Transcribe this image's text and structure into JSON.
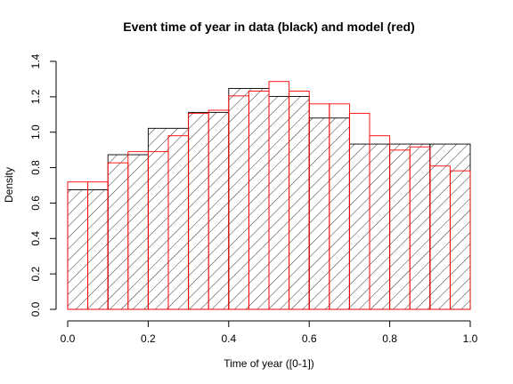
{
  "chart_data": {
    "type": "bar",
    "title": "Event time of year in data (black) and model (red)",
    "xlabel": "Time of year ([0-1])",
    "ylabel": "Density",
    "xlim": [
      0,
      1
    ],
    "ylim": [
      0,
      1.4
    ],
    "x_ticks": [
      "0.0",
      "0.2",
      "0.4",
      "0.6",
      "0.8",
      "1.0"
    ],
    "y_ticks": [
      "0.0",
      "0.2",
      "0.4",
      "0.6",
      "0.8",
      "1.0",
      "1.2",
      "1.4"
    ],
    "grid": false,
    "legend": "none",
    "series": [
      {
        "style": "hatched",
        "color": "#000000",
        "bins": [
          {
            "x0": 0.0,
            "x1": 0.1,
            "y": 0.675
          },
          {
            "x0": 0.1,
            "x1": 0.2,
            "y": 0.873
          },
          {
            "x0": 0.2,
            "x1": 0.3,
            "y": 1.022
          },
          {
            "x0": 0.3,
            "x1": 0.4,
            "y": 1.112
          },
          {
            "x0": 0.4,
            "x1": 0.5,
            "y": 1.247
          },
          {
            "x0": 0.5,
            "x1": 0.6,
            "y": 1.202
          },
          {
            "x0": 0.6,
            "x1": 0.7,
            "y": 1.08
          },
          {
            "x0": 0.7,
            "x1": 0.8,
            "y": 0.933
          },
          {
            "x0": 0.8,
            "x1": 0.9,
            "y": 0.933
          },
          {
            "x0": 0.9,
            "x1": 1.0,
            "y": 0.933
          }
        ]
      },
      {
        "style": "outline",
        "color": "#ff0000",
        "bins": [
          {
            "x0": 0.0,
            "x1": 0.05,
            "y": 0.719
          },
          {
            "x0": 0.05,
            "x1": 0.1,
            "y": 0.719
          },
          {
            "x0": 0.1,
            "x1": 0.15,
            "y": 0.827
          },
          {
            "x0": 0.15,
            "x1": 0.2,
            "y": 0.89
          },
          {
            "x0": 0.2,
            "x1": 0.25,
            "y": 0.89
          },
          {
            "x0": 0.25,
            "x1": 0.3,
            "y": 0.98
          },
          {
            "x0": 0.3,
            "x1": 0.35,
            "y": 1.106
          },
          {
            "x0": 0.35,
            "x1": 0.4,
            "y": 1.124
          },
          {
            "x0": 0.4,
            "x1": 0.45,
            "y": 1.205
          },
          {
            "x0": 0.45,
            "x1": 0.5,
            "y": 1.232
          },
          {
            "x0": 0.5,
            "x1": 0.55,
            "y": 1.286
          },
          {
            "x0": 0.55,
            "x1": 0.6,
            "y": 1.232
          },
          {
            "x0": 0.6,
            "x1": 0.65,
            "y": 1.16
          },
          {
            "x0": 0.65,
            "x1": 0.7,
            "y": 1.16
          },
          {
            "x0": 0.7,
            "x1": 0.75,
            "y": 1.106
          },
          {
            "x0": 0.75,
            "x1": 0.8,
            "y": 0.98
          },
          {
            "x0": 0.8,
            "x1": 0.85,
            "y": 0.899
          },
          {
            "x0": 0.85,
            "x1": 0.9,
            "y": 0.917
          },
          {
            "x0": 0.9,
            "x1": 0.95,
            "y": 0.809
          },
          {
            "x0": 0.95,
            "x1": 1.0,
            "y": 0.782
          }
        ]
      }
    ]
  }
}
